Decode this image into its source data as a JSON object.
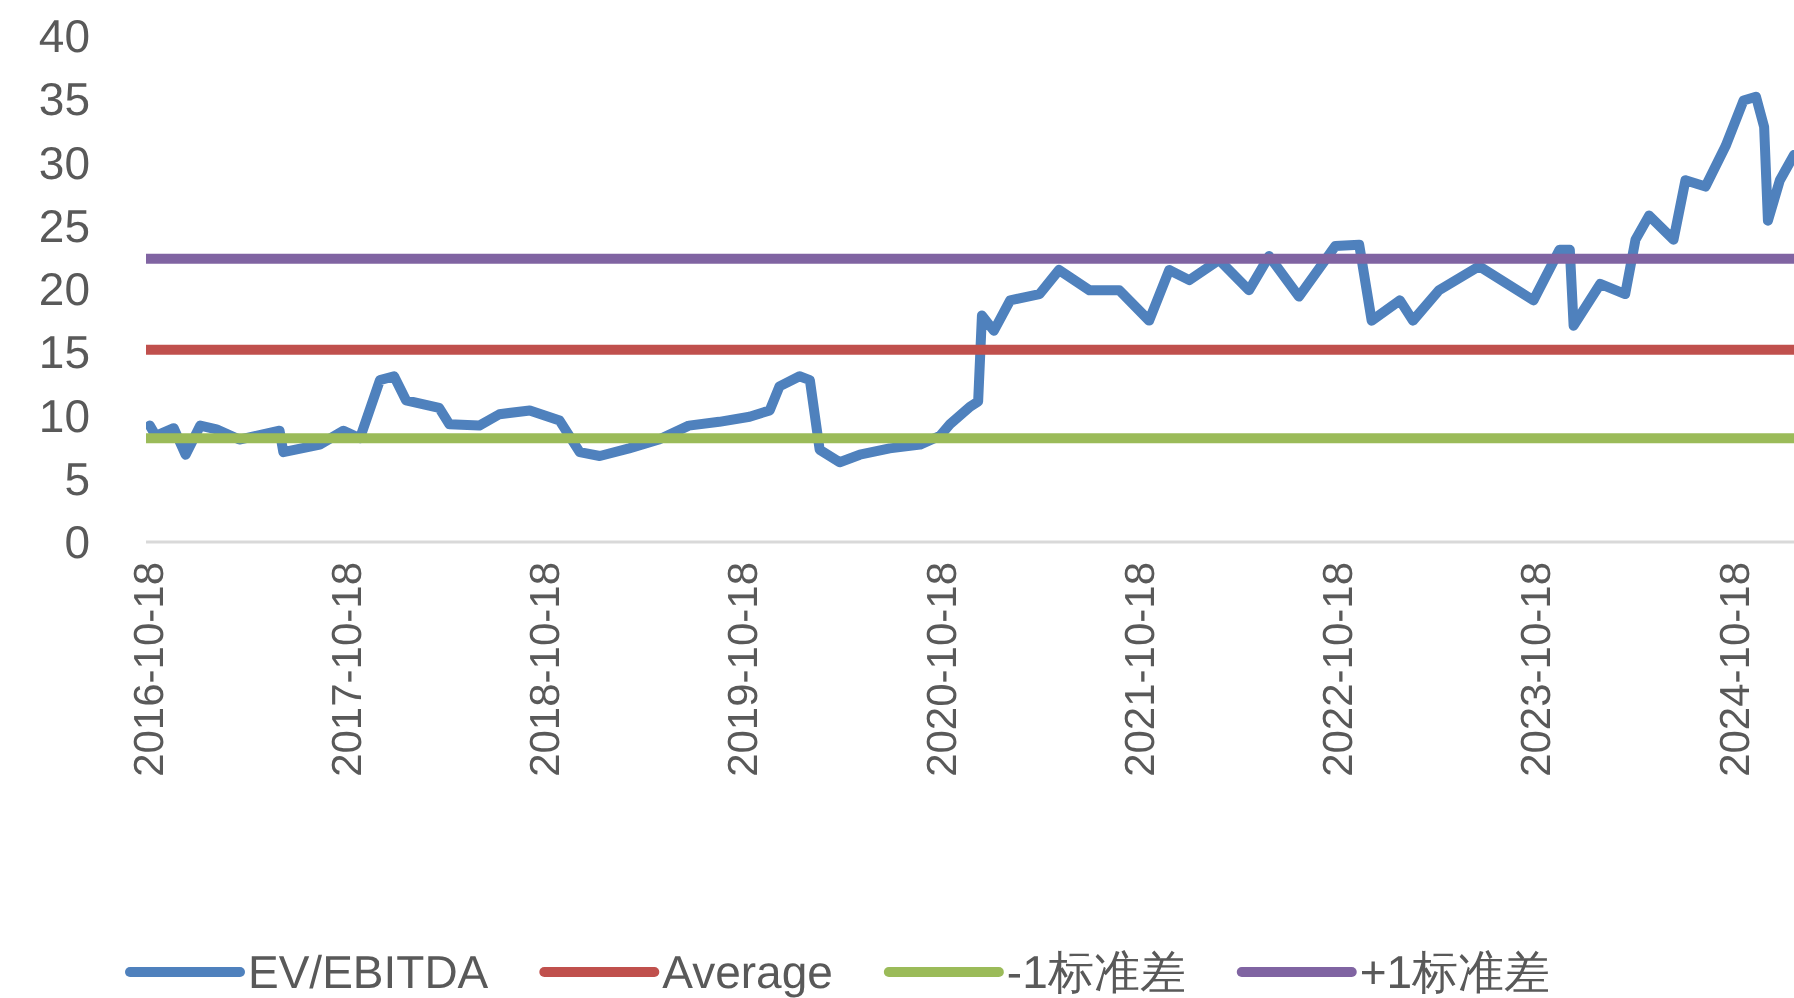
{
  "chart_data": {
    "type": "line",
    "xlim": [
      "2016-10-11",
      "2025-02-02"
    ],
    "xticks": [
      "2016-10-18",
      "2017-10-18",
      "2018-10-18",
      "2019-10-18",
      "2020-10-18",
      "2021-10-18",
      "2022-10-18",
      "2023-10-18",
      "2024-10-18"
    ],
    "ylim": [
      0,
      40
    ],
    "yticks": [
      0,
      5,
      10,
      15,
      20,
      25,
      30,
      35,
      40
    ],
    "grid": false,
    "legend": "bottom",
    "marker": "none",
    "line_style": "solid",
    "series": [
      {
        "name": "EV/EBITDA",
        "color": "#4f81bd",
        "x": [
          "2016-10-18",
          "2016-10-29",
          "2016-12-01",
          "2016-12-23",
          "2017-01-19",
          "2017-02-18",
          "2017-04-01",
          "2017-06-14",
          "2017-06-21",
          "2017-08-27",
          "2017-10-10",
          "2017-11-09",
          "2017-12-16",
          "2018-01-11",
          "2018-02-02",
          "2018-04-04",
          "2018-04-23",
          "2018-06-17",
          "2018-07-24",
          "2018-09-18",
          "2018-11-12",
          "2018-12-19",
          "2019-01-25",
          "2019-03-20",
          "2019-05-14",
          "2019-07-08",
          "2019-09-02",
          "2019-10-28",
          "2019-12-04",
          "2019-12-22",
          "2020-01-28",
          "2020-02-16",
          "2020-03-05",
          "2020-04-11",
          "2020-05-18",
          "2020-07-12",
          "2020-09-06",
          "2020-10-13",
          "2020-10-31",
          "2020-12-07",
          "2020-12-22",
          "2020-12-29",
          "2021-01-20",
          "2021-02-19",
          "2021-04-14",
          "2021-05-20",
          "2021-07-15",
          "2021-09-08",
          "2021-11-02",
          "2021-12-09",
          "2022-01-15",
          "2022-03-11",
          "2022-05-05",
          "2022-06-11",
          "2022-08-05",
          "2022-10-11",
          "2022-11-24",
          "2022-12-17",
          "2023-02-07",
          "2023-03-03",
          "2023-04-20",
          "2023-07-03",
          "2023-10-11",
          "2023-11-28",
          "2023-12-17",
          "2023-12-24",
          "2024-02-11",
          "2024-03-28",
          "2024-04-16",
          "2024-05-11",
          "2024-06-25",
          "2024-07-17",
          "2024-08-23",
          "2024-09-29",
          "2024-11-01",
          "2024-11-24",
          "2024-12-09",
          "2024-12-16",
          "2025-01-07",
          "2025-02-02"
        ],
        "values": [
          9.2,
          8.4,
          9.0,
          6.9,
          9.2,
          8.9,
          8.1,
          8.8,
          7.1,
          7.7,
          8.8,
          8.2,
          12.8,
          13.1,
          11.2,
          10.6,
          9.3,
          9.2,
          10.1,
          10.4,
          9.6,
          7.1,
          6.8,
          7.4,
          8.1,
          9.2,
          9.5,
          9.9,
          10.4,
          12.3,
          13.1,
          12.8,
          7.3,
          6.3,
          6.9,
          7.4,
          7.7,
          8.4,
          9.3,
          10.7,
          11.1,
          17.9,
          16.7,
          19.1,
          19.6,
          21.5,
          19.9,
          19.9,
          17.5,
          21.5,
          20.7,
          22.3,
          19.9,
          22.6,
          19.4,
          23.4,
          23.5,
          17.5,
          19.1,
          17.5,
          19.9,
          21.8,
          19.1,
          23.1,
          23.1,
          17.1,
          20.4,
          19.6,
          23.9,
          25.8,
          23.9,
          28.6,
          28.1,
          31.3,
          34.9,
          35.2,
          32.8,
          25.4,
          28.6,
          30.6
        ]
      },
      {
        "name": "Average",
        "color": "#c0504d",
        "x": [
          "2016-10-11",
          "2025-02-02"
        ],
        "values": [
          15.2,
          15.2
        ]
      },
      {
        "name": "-1标准差",
        "color": "#9bbb59",
        "x": [
          "2016-10-11",
          "2025-02-02"
        ],
        "values": [
          8.2,
          8.2
        ]
      },
      {
        "name": "+1标准差",
        "color": "#8064a2",
        "x": [
          "2016-10-11",
          "2025-02-02"
        ],
        "values": [
          22.4,
          22.4
        ]
      }
    ]
  }
}
